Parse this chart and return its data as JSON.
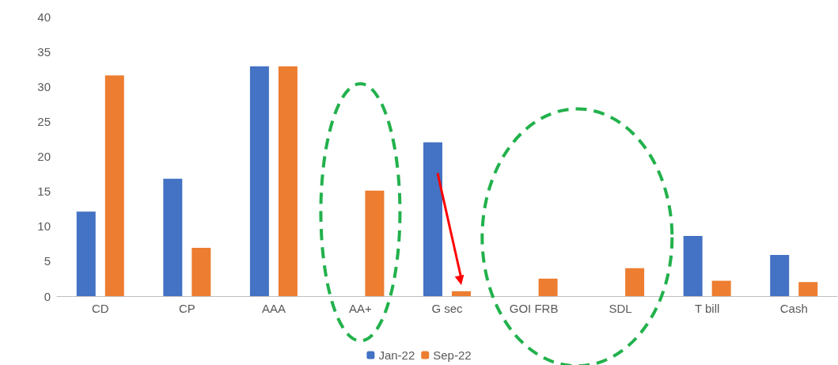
{
  "chart_data": {
    "type": "bar",
    "categories": [
      "CD",
      "CP",
      "AAA",
      "AA+",
      "G sec",
      "GOI FRB",
      "SDL",
      "T bill",
      "Cash"
    ],
    "series": [
      {
        "name": "Jan-22",
        "color": "#4472c4",
        "values": [
          12.1,
          16.8,
          32.9,
          null,
          22.0,
          null,
          null,
          8.6,
          5.9
        ]
      },
      {
        "name": "Sep-22",
        "color": "#ed7d31",
        "values": [
          31.6,
          6.9,
          32.9,
          15.1,
          0.7,
          2.5,
          4.0,
          2.2,
          2.0
        ]
      }
    ],
    "ylim": [
      0,
      40
    ],
    "yticks": [
      0,
      5,
      10,
      15,
      20,
      25,
      30,
      35,
      40
    ],
    "grid": false,
    "legend": "bottom"
  }
}
